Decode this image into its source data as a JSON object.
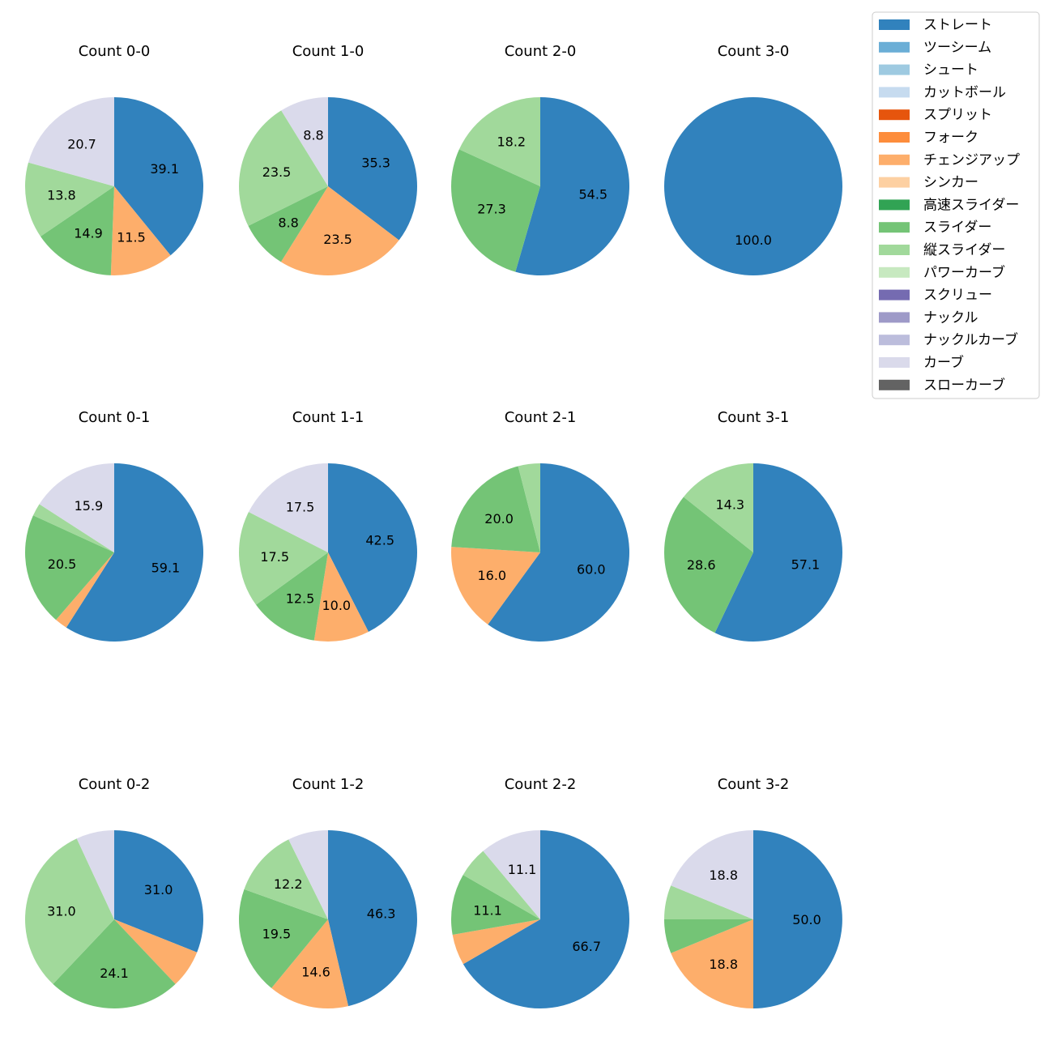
{
  "chart_data": {
    "type": "pie",
    "legend": {
      "placement": "top-right",
      "entries": [
        {
          "label": "ストレート",
          "color": "#3182bd"
        },
        {
          "label": "ツーシーム",
          "color": "#6baed6"
        },
        {
          "label": "シュート",
          "color": "#9ecae1"
        },
        {
          "label": "カットボール",
          "color": "#c6dbef"
        },
        {
          "label": "スプリット",
          "color": "#e6550d"
        },
        {
          "label": "フォーク",
          "color": "#fd8d3c"
        },
        {
          "label": "チェンジアップ",
          "color": "#fdae6b"
        },
        {
          "label": "シンカー",
          "color": "#fdd0a2"
        },
        {
          "label": "高速スライダー",
          "color": "#31a354"
        },
        {
          "label": "スライダー",
          "color": "#74c476"
        },
        {
          "label": "縦スライダー",
          "color": "#a1d99b"
        },
        {
          "label": "パワーカーブ",
          "color": "#c7e9c0"
        },
        {
          "label": "スクリュー",
          "color": "#756bb1"
        },
        {
          "label": "ナックル",
          "color": "#9e9ac8"
        },
        {
          "label": "ナックルカーブ",
          "color": "#bcbddc"
        },
        {
          "label": "カーブ",
          "color": "#dadaeb"
        },
        {
          "label": "スローカーブ",
          "color": "#636363"
        }
      ]
    },
    "pies": [
      {
        "title": "Count 0-0",
        "slices": [
          {
            "category": "ストレート",
            "value": 39.1,
            "label": "39.1"
          },
          {
            "category": "チェンジアップ",
            "value": 11.5,
            "label": "11.5"
          },
          {
            "category": "スライダー",
            "value": 14.9,
            "label": "14.9"
          },
          {
            "category": "縦スライダー",
            "value": 13.8,
            "label": "13.8"
          },
          {
            "category": "カーブ",
            "value": 20.7,
            "label": "20.7"
          }
        ]
      },
      {
        "title": "Count 1-0",
        "slices": [
          {
            "category": "ストレート",
            "value": 35.3,
            "label": "35.3"
          },
          {
            "category": "チェンジアップ",
            "value": 23.5,
            "label": "23.5"
          },
          {
            "category": "スライダー",
            "value": 8.8,
            "label": "8.8"
          },
          {
            "category": "縦スライダー",
            "value": 23.5,
            "label": "23.5"
          },
          {
            "category": "カーブ",
            "value": 8.8,
            "label": "8.8"
          }
        ]
      },
      {
        "title": "Count 2-0",
        "slices": [
          {
            "category": "ストレート",
            "value": 54.5,
            "label": "54.5"
          },
          {
            "category": "スライダー",
            "value": 27.3,
            "label": "27.3"
          },
          {
            "category": "縦スライダー",
            "value": 18.2,
            "label": "18.2"
          }
        ]
      },
      {
        "title": "Count 3-0",
        "slices": [
          {
            "category": "ストレート",
            "value": 100.0,
            "label": "100.0"
          }
        ]
      },
      {
        "title": "Count 0-1",
        "slices": [
          {
            "category": "ストレート",
            "value": 59.1,
            "label": "59.1"
          },
          {
            "category": "チェンジアップ",
            "value": 2.3,
            "label": ""
          },
          {
            "category": "スライダー",
            "value": 20.5,
            "label": "20.5"
          },
          {
            "category": "縦スライダー",
            "value": 2.3,
            "label": ""
          },
          {
            "category": "カーブ",
            "value": 15.9,
            "label": "15.9"
          }
        ]
      },
      {
        "title": "Count 1-1",
        "slices": [
          {
            "category": "ストレート",
            "value": 42.5,
            "label": "42.5"
          },
          {
            "category": "チェンジアップ",
            "value": 10.0,
            "label": "10.0"
          },
          {
            "category": "スライダー",
            "value": 12.5,
            "label": "12.5"
          },
          {
            "category": "縦スライダー",
            "value": 17.5,
            "label": "17.5"
          },
          {
            "category": "カーブ",
            "value": 17.5,
            "label": "17.5"
          }
        ]
      },
      {
        "title": "Count 2-1",
        "slices": [
          {
            "category": "ストレート",
            "value": 60.0,
            "label": "60.0"
          },
          {
            "category": "チェンジアップ",
            "value": 16.0,
            "label": "16.0"
          },
          {
            "category": "スライダー",
            "value": 20.0,
            "label": "20.0"
          },
          {
            "category": "縦スライダー",
            "value": 4.0,
            "label": ""
          }
        ]
      },
      {
        "title": "Count 3-1",
        "slices": [
          {
            "category": "ストレート",
            "value": 57.1,
            "label": "57.1"
          },
          {
            "category": "スライダー",
            "value": 28.6,
            "label": "28.6"
          },
          {
            "category": "縦スライダー",
            "value": 14.3,
            "label": "14.3"
          }
        ]
      },
      {
        "title": "Count 0-2",
        "slices": [
          {
            "category": "ストレート",
            "value": 31.0,
            "label": "31.0"
          },
          {
            "category": "チェンジアップ",
            "value": 6.9,
            "label": ""
          },
          {
            "category": "スライダー",
            "value": 24.1,
            "label": "24.1"
          },
          {
            "category": "縦スライダー",
            "value": 31.0,
            "label": "31.0"
          },
          {
            "category": "カーブ",
            "value": 6.9,
            "label": ""
          }
        ]
      },
      {
        "title": "Count 1-2",
        "slices": [
          {
            "category": "ストレート",
            "value": 46.3,
            "label": "46.3"
          },
          {
            "category": "チェンジアップ",
            "value": 14.6,
            "label": "14.6"
          },
          {
            "category": "スライダー",
            "value": 19.5,
            "label": "19.5"
          },
          {
            "category": "縦スライダー",
            "value": 12.2,
            "label": "12.2"
          },
          {
            "category": "カーブ",
            "value": 7.3,
            "label": ""
          }
        ]
      },
      {
        "title": "Count 2-2",
        "slices": [
          {
            "category": "ストレート",
            "value": 66.7,
            "label": "66.7"
          },
          {
            "category": "チェンジアップ",
            "value": 5.6,
            "label": ""
          },
          {
            "category": "スライダー",
            "value": 11.1,
            "label": "11.1"
          },
          {
            "category": "縦スライダー",
            "value": 5.6,
            "label": ""
          },
          {
            "category": "カーブ",
            "value": 11.1,
            "label": "11.1"
          }
        ]
      },
      {
        "title": "Count 3-2",
        "slices": [
          {
            "category": "ストレート",
            "value": 50.0,
            "label": "50.0"
          },
          {
            "category": "チェンジアップ",
            "value": 18.8,
            "label": "18.8"
          },
          {
            "category": "スライダー",
            "value": 6.2,
            "label": ""
          },
          {
            "category": "縦スライダー",
            "value": 6.2,
            "label": ""
          },
          {
            "category": "カーブ",
            "value": 18.8,
            "label": "18.8"
          }
        ]
      }
    ]
  }
}
